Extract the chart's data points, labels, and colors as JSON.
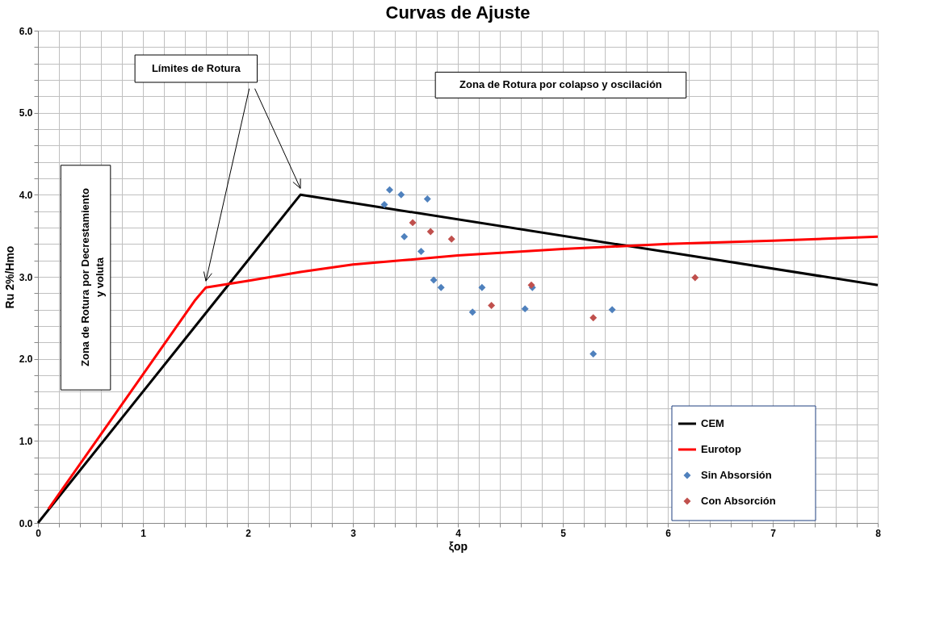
{
  "chart_data": {
    "type": "line",
    "title": "Curvas de Ajuste",
    "xlabel": "ξop",
    "ylabel": "Ru 2%/Hmo",
    "xlim": [
      0,
      8
    ],
    "ylim": [
      0,
      6
    ],
    "xticks": [
      0,
      {
        "value": 0.2,
        "label": null
      },
      {
        "value": 0.4,
        "label": null
      },
      {
        "value": 0.6,
        "label": null
      },
      {
        "value": 0.8,
        "label": null
      },
      1,
      {
        "value": 1.2,
        "label": null
      },
      {
        "value": 1.4,
        "label": null
      },
      {
        "value": 1.6,
        "label": null
      },
      {
        "value": 1.8,
        "label": null
      },
      2,
      {
        "value": 2.2,
        "label": null
      },
      {
        "value": 2.4,
        "label": null
      },
      {
        "value": 2.6,
        "label": null
      },
      {
        "value": 2.8,
        "label": null
      },
      3,
      {
        "value": 3.2,
        "label": null
      },
      {
        "value": 3.4,
        "label": null
      },
      {
        "value": 3.6,
        "label": null
      },
      {
        "value": 3.8,
        "label": null
      },
      4,
      {
        "value": 4.2,
        "label": null
      },
      {
        "value": 4.4,
        "label": null
      },
      {
        "value": 4.6,
        "label": null
      },
      {
        "value": 4.8,
        "label": null
      },
      5,
      {
        "value": 5.2,
        "label": null
      },
      {
        "value": 5.4,
        "label": null
      },
      {
        "value": 5.6,
        "label": null
      },
      {
        "value": 5.8,
        "label": null
      },
      6,
      {
        "value": 6.2,
        "label": null
      },
      {
        "value": 6.4,
        "label": null
      },
      {
        "value": 6.6,
        "label": null
      },
      {
        "value": 6.8,
        "label": null
      },
      7,
      {
        "value": 7.2,
        "label": null
      },
      {
        "value": 7.4,
        "label": null
      },
      {
        "value": 7.6,
        "label": null
      },
      {
        "value": 7.8,
        "label": null
      },
      8
    ],
    "yticks": [
      {
        "value": 0,
        "label": "0.0"
      },
      {
        "value": 0.2,
        "label": null
      },
      {
        "value": 0.4,
        "label": null
      },
      {
        "value": 0.6,
        "label": null
      },
      {
        "value": 0.8,
        "label": null
      },
      {
        "value": 1,
        "label": "1.0"
      },
      {
        "value": 1.2,
        "label": null
      },
      {
        "value": 1.4,
        "label": null
      },
      {
        "value": 1.6,
        "label": null
      },
      {
        "value": 1.8,
        "label": null
      },
      {
        "value": 2,
        "label": "2.0"
      },
      {
        "value": 2.2,
        "label": null
      },
      {
        "value": 2.4,
        "label": null
      },
      {
        "value": 2.6,
        "label": null
      },
      {
        "value": 2.8,
        "label": null
      },
      {
        "value": 3,
        "label": "3.0"
      },
      {
        "value": 3.2,
        "label": null
      },
      {
        "value": 3.4,
        "label": null
      },
      {
        "value": 3.6,
        "label": null
      },
      {
        "value": 3.8,
        "label": null
      },
      {
        "value": 4,
        "label": "4.0"
      },
      {
        "value": 4.2,
        "label": null
      },
      {
        "value": 4.4,
        "label": null
      },
      {
        "value": 4.6,
        "label": null
      },
      {
        "value": 4.8,
        "label": null
      },
      {
        "value": 5,
        "label": "5.0"
      },
      {
        "value": 5.2,
        "label": null
      },
      {
        "value": 5.4,
        "label": null
      },
      {
        "value": 5.6,
        "label": null
      },
      {
        "value": 5.8,
        "label": null
      },
      {
        "value": 6,
        "label": "6.0"
      }
    ],
    "grid": true,
    "legend": "bottom right",
    "line_style": "solid",
    "series": [
      {
        "name": "CEM",
        "marker": "none",
        "color": "#000000",
        "x": [
          0,
          2.5,
          8
        ],
        "values": [
          0,
          4.0,
          2.9
        ]
      },
      {
        "name": "Eurotop",
        "marker": "none",
        "color": "#ff0000",
        "x": [
          0.1,
          1.5,
          1.6,
          2.0,
          2.5,
          3,
          4,
          5,
          6,
          7,
          8
        ],
        "values": [
          0.17,
          2.72,
          2.87,
          2.95,
          3.06,
          3.15,
          3.26,
          3.34,
          3.4,
          3.44,
          3.49
        ]
      },
      {
        "name": "Sin Absorsión",
        "type": "scatter",
        "marker": "diamond",
        "color": "#4f81bd",
        "x": [
          3.35,
          3.46,
          3.71,
          3.3,
          3.49,
          3.65,
          3.77,
          3.84,
          4.23,
          4.14,
          4.64,
          4.71,
          5.47,
          5.29
        ],
        "values": [
          4.06,
          4.0,
          3.95,
          3.88,
          3.49,
          3.31,
          2.96,
          2.87,
          2.87,
          2.57,
          2.61,
          2.87,
          2.6,
          2.06
        ]
      },
      {
        "name": "Con Absorción",
        "type": "scatter",
        "marker": "diamond",
        "color": "#c0504d",
        "x": [
          3.57,
          3.74,
          3.94,
          4.7,
          4.32,
          5.29,
          6.26
        ],
        "values": [
          3.66,
          3.55,
          3.46,
          2.9,
          2.65,
          2.5,
          2.99
        ]
      }
    ],
    "annotations": [
      "Límites de Rotura",
      "Zona de Rotura por colapso y oscilación",
      "Zona de Rotura por Decrestamiento y voluta"
    ]
  }
}
